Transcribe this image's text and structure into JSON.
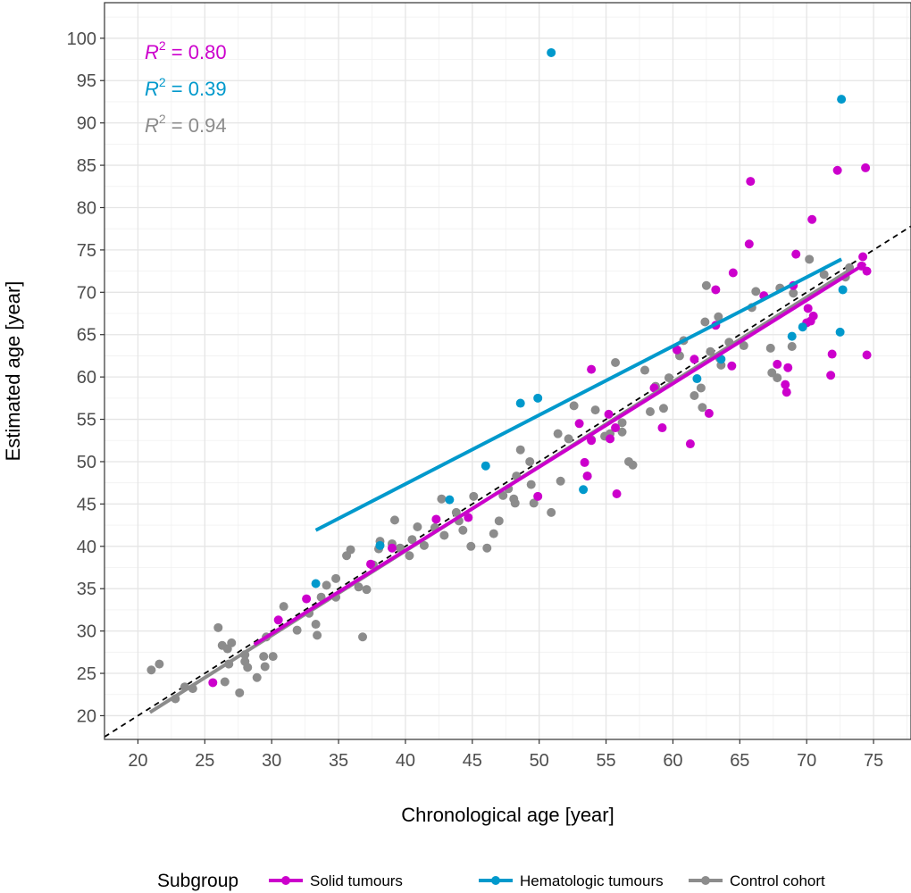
{
  "chart_data": {
    "type": "scatter",
    "xlabel": "Chronological age [year]",
    "ylabel": "Estimated age [year]",
    "xlim": [
      17.5,
      77.8
    ],
    "ylim": [
      17.2,
      104.2
    ],
    "x_ticks": [
      20,
      25,
      30,
      35,
      40,
      45,
      50,
      55,
      60,
      65,
      70,
      75
    ],
    "y_ticks": [
      20,
      25,
      30,
      35,
      40,
      45,
      50,
      55,
      60,
      65,
      70,
      75,
      80,
      85,
      90,
      95,
      100
    ],
    "grid": true,
    "identity_line": {
      "x": [
        17.5,
        77.8
      ],
      "y": [
        17.5,
        77.8
      ],
      "style": "dashed",
      "color": "#000000"
    },
    "legend": {
      "title": "Subgroup",
      "placement": "bottom",
      "entries": [
        "Solid tumours",
        "Hematologic tumours",
        "Control cohort"
      ]
    },
    "annotations": [
      {
        "label": "R",
        "superscript": "2",
        "text": " = 0.80",
        "color": "#CC00CC"
      },
      {
        "label": "R",
        "superscript": "2",
        "text": " = 0.39",
        "color": "#0099CC"
      },
      {
        "label": "R",
        "superscript": "2",
        "text": " = 0.94",
        "color": "#8C8C8C"
      }
    ],
    "series": [
      {
        "name": "Control cohort",
        "color": "#8C8C8C",
        "fit": {
          "x": [
            20.9,
            73.3
          ],
          "y": [
            20.4,
            72.7
          ]
        },
        "points": [
          [
            21.0,
            25.4
          ],
          [
            21.6,
            26.1
          ],
          [
            22.8,
            22.0
          ],
          [
            23.5,
            23.4
          ],
          [
            24.1,
            23.2
          ],
          [
            26.0,
            30.4
          ],
          [
            26.3,
            28.3
          ],
          [
            26.5,
            24.0
          ],
          [
            26.8,
            26.1
          ],
          [
            27.0,
            28.6
          ],
          [
            26.7,
            27.9
          ],
          [
            27.6,
            22.7
          ],
          [
            28.0,
            26.4
          ],
          [
            28.2,
            25.7
          ],
          [
            28.0,
            27.2
          ],
          [
            28.9,
            24.5
          ],
          [
            29.4,
            27.0
          ],
          [
            29.5,
            25.8
          ],
          [
            29.6,
            29.3
          ],
          [
            30.1,
            27.0
          ],
          [
            30.9,
            32.9
          ],
          [
            31.9,
            30.1
          ],
          [
            32.8,
            32.1
          ],
          [
            33.3,
            30.8
          ],
          [
            33.4,
            29.5
          ],
          [
            33.7,
            34.0
          ],
          [
            34.1,
            35.4
          ],
          [
            34.8,
            36.2
          ],
          [
            34.8,
            34.0
          ],
          [
            35.6,
            38.9
          ],
          [
            35.9,
            39.6
          ],
          [
            36.5,
            35.2
          ],
          [
            36.8,
            29.3
          ],
          [
            37.1,
            34.9
          ],
          [
            37.6,
            37.8
          ],
          [
            38.1,
            40.6
          ],
          [
            38.0,
            39.7
          ],
          [
            39.0,
            40.3
          ],
          [
            39.2,
            43.1
          ],
          [
            39.6,
            39.8
          ],
          [
            40.3,
            38.9
          ],
          [
            40.5,
            40.8
          ],
          [
            40.9,
            42.3
          ],
          [
            41.4,
            40.1
          ],
          [
            42.2,
            42.2
          ],
          [
            42.7,
            45.6
          ],
          [
            42.9,
            41.3
          ],
          [
            43.8,
            44.0
          ],
          [
            44.0,
            43.0
          ],
          [
            44.3,
            41.9
          ],
          [
            45.1,
            45.9
          ],
          [
            44.9,
            40.0
          ],
          [
            46.1,
            39.8
          ],
          [
            46.6,
            41.5
          ],
          [
            47.0,
            43.0
          ],
          [
            47.3,
            46.0
          ],
          [
            47.7,
            46.8
          ],
          [
            48.1,
            45.6
          ],
          [
            48.2,
            45.1
          ],
          [
            48.3,
            48.3
          ],
          [
            48.6,
            51.4
          ],
          [
            49.3,
            50.0
          ],
          [
            49.4,
            47.3
          ],
          [
            49.6,
            45.1
          ],
          [
            50.9,
            44.0
          ],
          [
            51.6,
            47.7
          ],
          [
            51.4,
            53.3
          ],
          [
            52.2,
            52.7
          ],
          [
            52.6,
            56.6
          ],
          [
            53.6,
            48.3
          ],
          [
            53.9,
            52.6
          ],
          [
            54.2,
            56.1
          ],
          [
            54.9,
            53.0
          ],
          [
            55.3,
            53.3
          ],
          [
            55.7,
            61.7
          ],
          [
            56.2,
            53.5
          ],
          [
            56.2,
            54.6
          ],
          [
            56.7,
            50.0
          ],
          [
            57.0,
            49.6
          ],
          [
            57.9,
            60.8
          ],
          [
            58.3,
            55.9
          ],
          [
            58.7,
            58.9
          ],
          [
            59.3,
            56.3
          ],
          [
            59.7,
            59.9
          ],
          [
            60.5,
            62.5
          ],
          [
            60.8,
            64.3
          ],
          [
            61.6,
            57.8
          ],
          [
            62.1,
            58.7
          ],
          [
            62.2,
            56.4
          ],
          [
            62.4,
            66.5
          ],
          [
            62.5,
            70.8
          ],
          [
            62.8,
            63.0
          ],
          [
            63.4,
            67.1
          ],
          [
            63.6,
            61.4
          ],
          [
            63.5,
            62.2
          ],
          [
            64.2,
            64.1
          ],
          [
            65.3,
            63.7
          ],
          [
            65.9,
            68.2
          ],
          [
            66.2,
            70.1
          ],
          [
            67.3,
            63.4
          ],
          [
            67.4,
            60.5
          ],
          [
            67.8,
            59.9
          ],
          [
            68.0,
            70.5
          ],
          [
            68.9,
            63.6
          ],
          [
            69.0,
            69.9
          ],
          [
            70.2,
            73.9
          ],
          [
            71.3,
            72.1
          ],
          [
            72.9,
            71.8
          ],
          [
            73.2,
            72.9
          ]
        ]
      },
      {
        "name": "Solid tumours",
        "color": "#CC00CC",
        "fit": {
          "x": [
            28.7,
            74.4
          ],
          "y": [
            28.4,
            73.4
          ]
        },
        "points": [
          [
            25.6,
            23.9
          ],
          [
            30.5,
            31.3
          ],
          [
            32.6,
            33.8
          ],
          [
            37.4,
            37.9
          ],
          [
            39.0,
            39.8
          ],
          [
            42.3,
            43.2
          ],
          [
            44.7,
            43.4
          ],
          [
            49.9,
            45.9
          ],
          [
            53.0,
            54.5
          ],
          [
            53.4,
            49.9
          ],
          [
            53.6,
            48.3
          ],
          [
            53.9,
            52.5
          ],
          [
            53.9,
            60.9
          ],
          [
            55.2,
            55.6
          ],
          [
            55.3,
            52.7
          ],
          [
            55.7,
            54.0
          ],
          [
            55.8,
            46.2
          ],
          [
            58.6,
            58.7
          ],
          [
            59.2,
            54.0
          ],
          [
            60.3,
            63.2
          ],
          [
            61.3,
            52.1
          ],
          [
            61.6,
            62.1
          ],
          [
            62.7,
            55.7
          ],
          [
            63.2,
            66.1
          ],
          [
            63.2,
            70.3
          ],
          [
            64.4,
            61.3
          ],
          [
            64.5,
            72.3
          ],
          [
            65.7,
            75.7
          ],
          [
            65.8,
            83.1
          ],
          [
            66.8,
            69.6
          ],
          [
            67.8,
            61.5
          ],
          [
            68.4,
            59.1
          ],
          [
            68.5,
            58.2
          ],
          [
            68.6,
            61.1
          ],
          [
            69.0,
            70.8
          ],
          [
            69.2,
            74.5
          ],
          [
            70.0,
            66.4
          ],
          [
            70.1,
            68.1
          ],
          [
            70.3,
            66.6
          ],
          [
            70.4,
            78.6
          ],
          [
            70.5,
            67.2
          ],
          [
            71.8,
            60.2
          ],
          [
            71.9,
            62.7
          ],
          [
            72.3,
            84.4
          ],
          [
            74.1,
            73.1
          ],
          [
            74.2,
            74.2
          ],
          [
            74.4,
            84.7
          ],
          [
            74.5,
            72.5
          ],
          [
            74.5,
            62.6
          ]
        ]
      },
      {
        "name": "Hematologic tumours",
        "color": "#0099CC",
        "fit": {
          "x": [
            33.3,
            72.6
          ],
          "y": [
            41.9,
            73.9
          ]
        },
        "points": [
          [
            33.3,
            35.6
          ],
          [
            38.1,
            40.1
          ],
          [
            43.3,
            45.5
          ],
          [
            46.0,
            49.5
          ],
          [
            48.6,
            56.9
          ],
          [
            49.9,
            57.5
          ],
          [
            50.9,
            98.3
          ],
          [
            53.3,
            46.7
          ],
          [
            61.8,
            59.8
          ],
          [
            63.6,
            62.1
          ],
          [
            68.9,
            64.8
          ],
          [
            69.7,
            65.9
          ],
          [
            72.5,
            65.3
          ],
          [
            72.6,
            92.8
          ],
          [
            72.7,
            70.3
          ]
        ]
      }
    ]
  }
}
